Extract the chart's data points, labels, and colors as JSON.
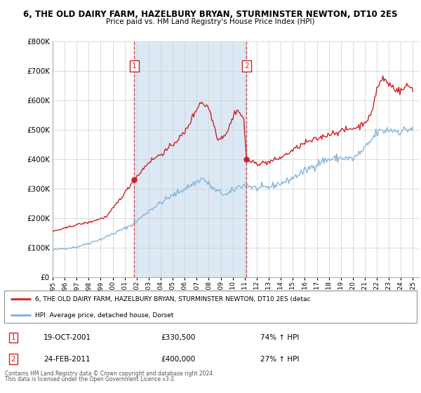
{
  "title": "6, THE OLD DAIRY FARM, HAZELBURY BRYAN, STURMINSTER NEWTON, DT10 2ES",
  "subtitle": "Price paid vs. HM Land Registry's House Price Index (HPI)",
  "ylim": [
    0,
    800000
  ],
  "yticks": [
    0,
    100000,
    200000,
    300000,
    400000,
    500000,
    600000,
    700000,
    800000
  ],
  "ytick_labels": [
    "£0",
    "£100K",
    "£200K",
    "£300K",
    "£400K",
    "£500K",
    "£600K",
    "£700K",
    "£800K"
  ],
  "xlim_start": 1995.0,
  "xlim_end": 2025.5,
  "purchase1_date": 2001.8,
  "purchase1_price": 330500,
  "purchase1_label": "19-OCT-2001",
  "purchase1_hpi": "74% ↑ HPI",
  "purchase2_date": 2011.15,
  "purchase2_price": 400000,
  "purchase2_label": "24-FEB-2011",
  "purchase2_hpi": "27% ↑ HPI",
  "property_color": "#cc2222",
  "hpi_color": "#7ab0d8",
  "shading_color": "#dce9f5",
  "bg_color": "#ffffff",
  "grid_color": "#cccccc",
  "legend_label_property": "6, THE OLD DAIRY FARM, HAZELBURY BRYAN, STURMINSTER NEWTON, DT10 2ES (detac",
  "legend_label_hpi": "HPI: Average price, detached house, Dorset",
  "footnote1": "Contains HM Land Registry data © Crown copyright and database right 2024.",
  "footnote2": "This data is licensed under the Open Government Licence v3.0.",
  "hpi_anchors": {
    "1995.0": 92000,
    "1997.0": 102000,
    "1999.0": 128000,
    "2001.0": 165000,
    "2001.8": 182000,
    "2003.0": 225000,
    "2004.5": 265000,
    "2006.0": 300000,
    "2007.5": 335000,
    "2008.5": 295000,
    "2009.5": 278000,
    "2010.5": 308000,
    "2011.15": 312000,
    "2012.0": 300000,
    "2013.0": 305000,
    "2014.5": 325000,
    "2016.0": 360000,
    "2017.5": 395000,
    "2019.0": 405000,
    "2020.0": 400000,
    "2021.0": 435000,
    "2022.0": 490000,
    "2023.0": 500000,
    "2024.0": 495000,
    "2025.0": 505000
  },
  "prop_anchors": {
    "1995.0": 155000,
    "1996.0": 165000,
    "1997.0": 178000,
    "1998.0": 185000,
    "1999.5": 205000,
    "2001.0": 285000,
    "2001.8": 330500,
    "2003.0": 390000,
    "2004.5": 430000,
    "2006.0": 490000,
    "2007.3": 595000,
    "2008.0": 575000,
    "2008.8": 465000,
    "2009.5": 490000,
    "2010.3": 570000,
    "2010.9": 540000,
    "2011.15": 400000,
    "2011.5": 390000,
    "2012.0": 385000,
    "2013.0": 390000,
    "2014.0": 405000,
    "2015.0": 430000,
    "2016.0": 455000,
    "2017.0": 468000,
    "2018.0": 485000,
    "2019.0": 495000,
    "2020.0": 505000,
    "2020.5": 510000,
    "2021.5": 545000,
    "2022.0": 640000,
    "2022.5": 675000,
    "2023.0": 655000,
    "2023.5": 640000,
    "2024.0": 630000,
    "2024.5": 650000,
    "2025.0": 640000
  }
}
